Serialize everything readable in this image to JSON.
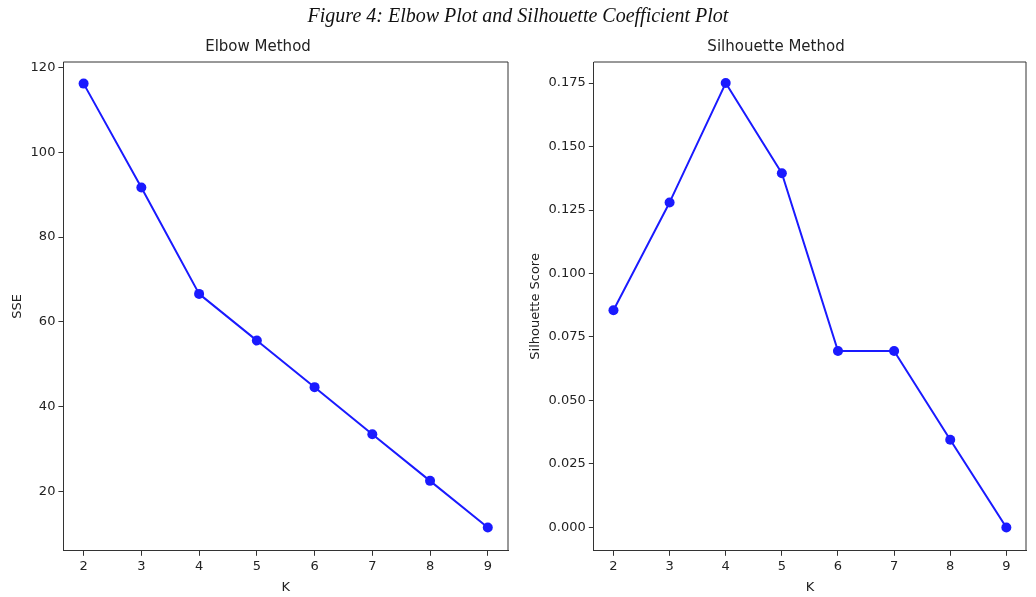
{
  "chart_data": [
    {
      "type": "line",
      "title": "Elbow Method",
      "xlabel": "K",
      "ylabel": "SSE",
      "annotations": [
        "Figure 4: Elbow Plot and Silhouette Coefficient Plot"
      ],
      "x": [
        2,
        3,
        4,
        5,
        6,
        7,
        8,
        9
      ],
      "series": [
        {
          "color": "#1a1aff",
          "values": [
            116.2,
            91.7,
            66.6,
            55.6,
            44.6,
            33.5,
            22.5,
            11.5
          ]
        }
      ],
      "xlim": [
        1.65,
        9.35
      ],
      "xticks": [
        2,
        3,
        4,
        5,
        6,
        7,
        8,
        9
      ],
      "ylim": [
        6,
        121.3
      ],
      "yticks": [
        20,
        40,
        60,
        80,
        100,
        120
      ],
      "grid": false,
      "legend": false,
      "marker": "circle",
      "line_style": "solid"
    },
    {
      "type": "line",
      "title": "Silhouette Method",
      "xlabel": "K",
      "ylabel": "Silhouette Score",
      "x": [
        2,
        3,
        4,
        5,
        6,
        7,
        8,
        9
      ],
      "series": [
        {
          "color": "#1a1aff",
          "values": [
            0.0855,
            0.128,
            0.175,
            0.1395,
            0.0695,
            0.0695,
            0.0345,
            0
          ]
        }
      ],
      "xlim": [
        1.65,
        9.35
      ],
      "xticks": [
        2,
        3,
        4,
        5,
        6,
        7,
        8,
        9
      ],
      "ylim": [
        -0.0092,
        0.1833
      ],
      "yticks": [
        {
          "value": 0,
          "label": "0.000"
        },
        {
          "value": 0.025,
          "label": "0.025"
        },
        {
          "value": 0.05,
          "label": "0.050"
        },
        {
          "value": 0.075,
          "label": "0.075"
        },
        {
          "value": 0.1,
          "label": "0.100"
        },
        {
          "value": 0.125,
          "label": "0.125"
        },
        {
          "value": 0.15,
          "label": "0.150"
        },
        {
          "value": 0.175,
          "label": "0.175"
        }
      ],
      "grid": false,
      "legend": false,
      "marker": "circle",
      "line_style": "solid"
    }
  ]
}
